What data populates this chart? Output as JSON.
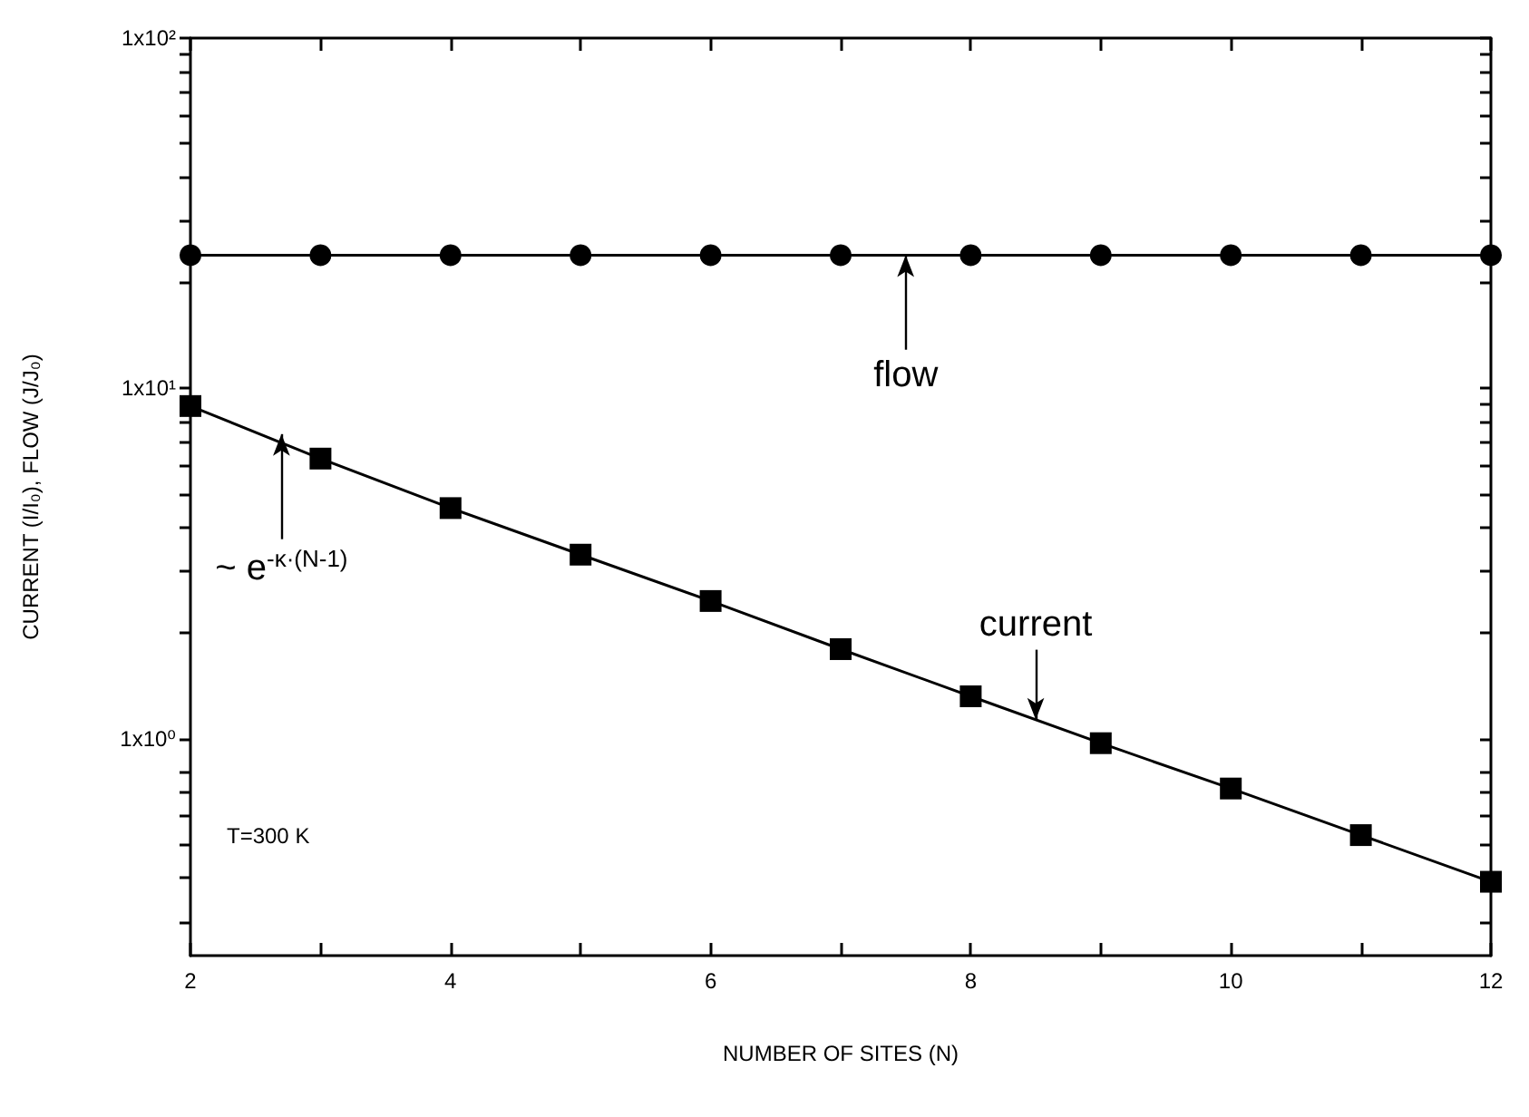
{
  "chart_data": {
    "type": "line",
    "xlabel": "NUMBER OF SITES (N)",
    "ylabel": "CURRENT (I/I₀), FLOW (J/J₀)",
    "x": [
      2,
      3,
      4,
      5,
      6,
      7,
      8,
      9,
      10,
      11,
      12
    ],
    "series": [
      {
        "name": "flow",
        "color": "#000000",
        "marker": "circle",
        "values": [
          24,
          24,
          24,
          24,
          24,
          24,
          24,
          24,
          24,
          24,
          24
        ]
      },
      {
        "name": "current",
        "color": "#000000",
        "marker": "square",
        "values": [
          8.9,
          6.3,
          4.55,
          3.35,
          2.47,
          1.8,
          1.32,
          0.97,
          0.72,
          0.53,
          0.39
        ]
      }
    ],
    "log": "y",
    "xlim": [
      2,
      12
    ],
    "xticks": [
      2,
      {
        "value": 3,
        "label": null
      },
      4,
      {
        "value": 5,
        "label": null
      },
      6,
      {
        "value": 7,
        "label": null
      },
      8,
      {
        "value": 9,
        "label": null
      },
      10,
      {
        "value": 11,
        "label": null
      },
      12
    ],
    "ylim": [
      0.24,
      100
    ],
    "yticks": [
      {
        "value": 0.3,
        "label": null
      },
      {
        "value": 0.4,
        "label": null
      },
      {
        "value": 0.5,
        "label": null
      },
      {
        "value": 0.6,
        "label": null
      },
      {
        "value": 0.7,
        "label": null
      },
      {
        "value": 0.8,
        "label": null
      },
      {
        "value": 1,
        "label": "1x10⁰"
      },
      {
        "value": 2,
        "label": null
      },
      {
        "value": 3,
        "label": null
      },
      {
        "value": 4,
        "label": null
      },
      {
        "value": 5,
        "label": null
      },
      {
        "value": 6,
        "label": null
      },
      {
        "value": 7,
        "label": null
      },
      {
        "value": 8,
        "label": null
      },
      {
        "value": 9,
        "label": null
      },
      {
        "value": 10,
        "label": "1x10¹"
      },
      {
        "value": 20,
        "label": null
      },
      {
        "value": 30,
        "label": null
      },
      {
        "value": 40,
        "label": null
      },
      {
        "value": 50,
        "label": null
      },
      {
        "value": 60,
        "label": null
      },
      {
        "value": 70,
        "label": null
      },
      {
        "value": 80,
        "label": null
      },
      {
        "value": 90,
        "label": null
      },
      {
        "value": 100,
        "label": "1x10²"
      }
    ],
    "grid": false,
    "legend": false,
    "line_style": "solid",
    "annotations": [
      {
        "text": "~ e$^{-κ·(N-1)}$",
        "x": 2.7,
        "y": 7.4
      },
      "T=300 K"
    ]
  }
}
